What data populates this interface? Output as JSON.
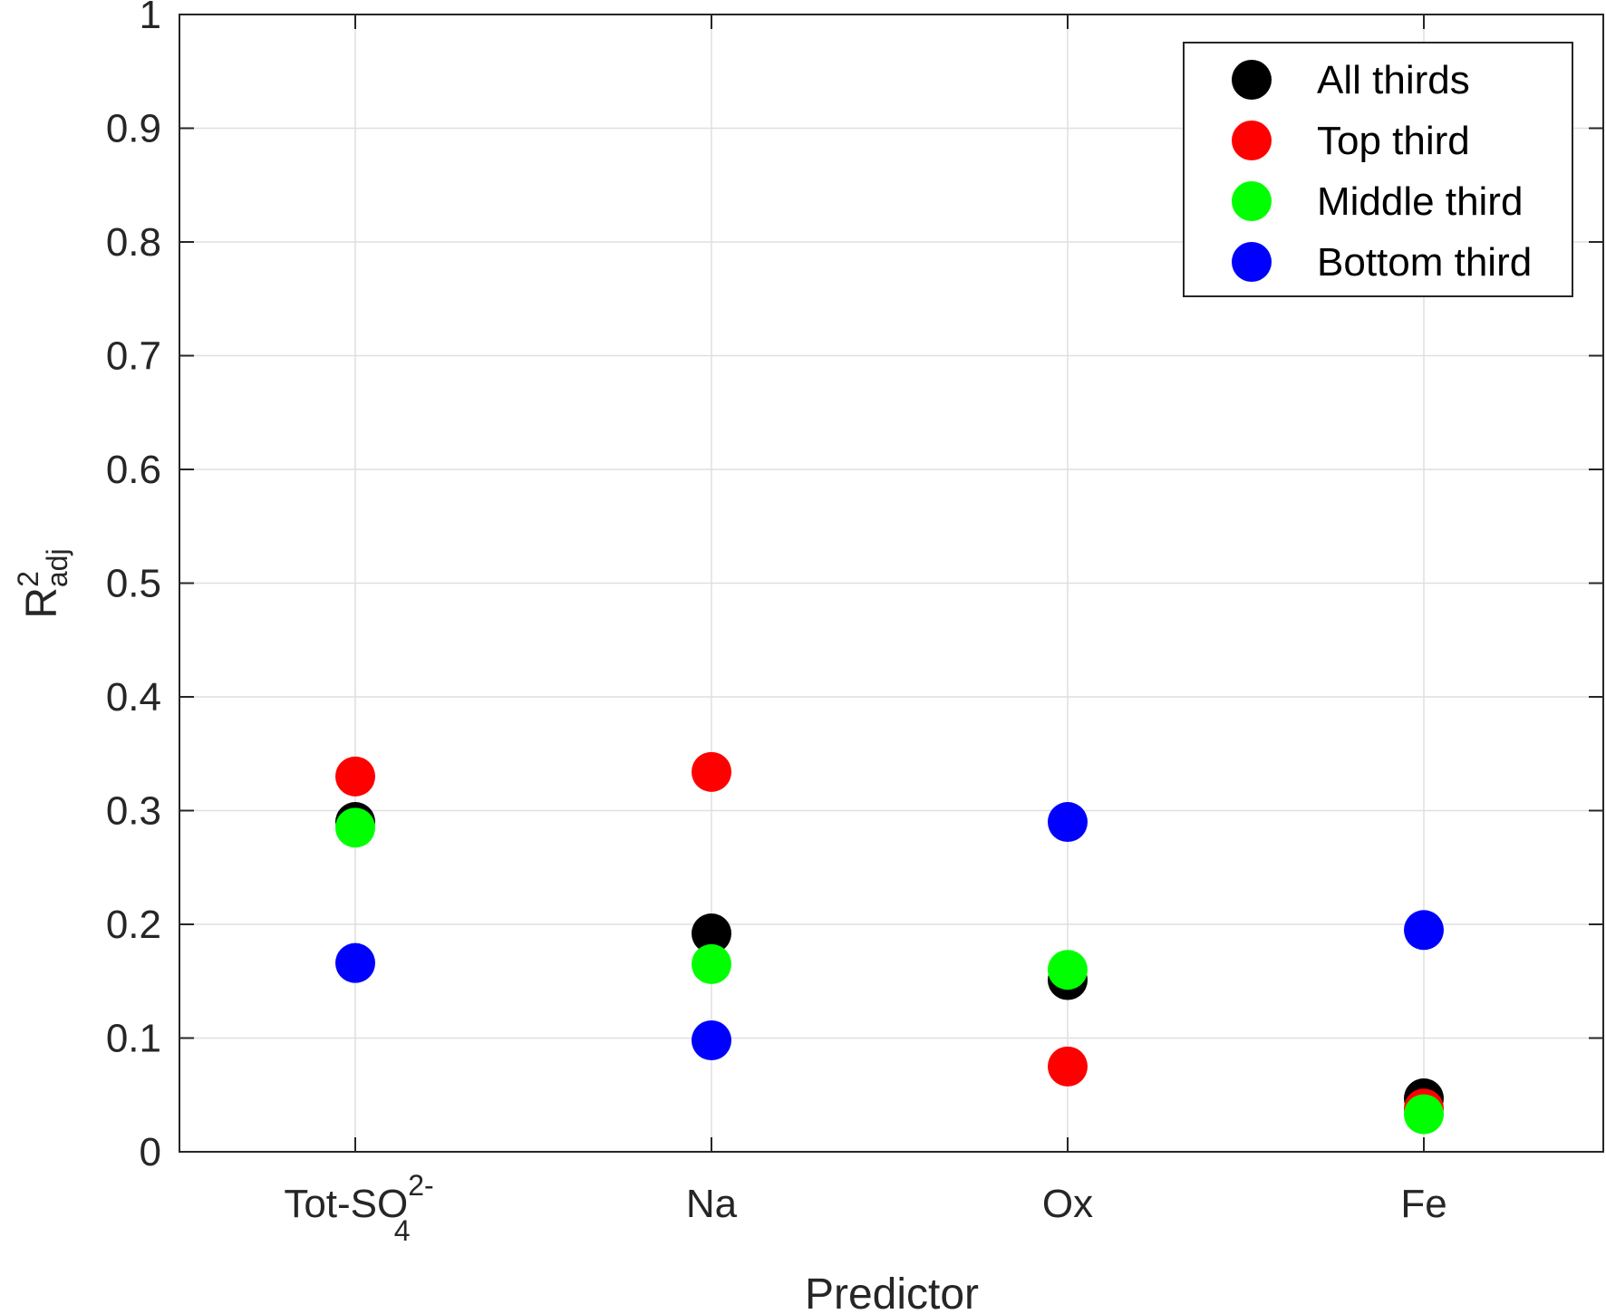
{
  "chart_data": {
    "type": "scatter",
    "categories": [
      "Tot-SO",
      "Na",
      "Ox",
      "Fe"
    ],
    "category_formula": {
      "base": "Tot-SO",
      "subscript": "4",
      "superscript": "2-"
    },
    "xlabel": "Predictor",
    "ylabel": {
      "base": "R",
      "superscript": "2",
      "subscript": "adj"
    },
    "ylim": [
      0,
      1
    ],
    "yticks": [
      "0",
      "0.1",
      "0.2",
      "0.3",
      "0.4",
      "0.5",
      "0.6",
      "0.7",
      "0.8",
      "0.9",
      "1"
    ],
    "grid": true,
    "legend_position": "top-right",
    "series": [
      {
        "name": "All thirds",
        "color": "#000000",
        "values": [
          0.29,
          0.192,
          0.151,
          0.047
        ]
      },
      {
        "name": "Top third",
        "color": "#ff0000",
        "values": [
          0.33,
          0.334,
          0.075,
          0.038
        ]
      },
      {
        "name": "Middle third",
        "color": "#00ff00",
        "values": [
          0.285,
          0.165,
          0.16,
          0.033
        ]
      },
      {
        "name": "Bottom third",
        "color": "#0000ff",
        "values": [
          0.166,
          0.098,
          0.29,
          0.195
        ]
      }
    ]
  }
}
